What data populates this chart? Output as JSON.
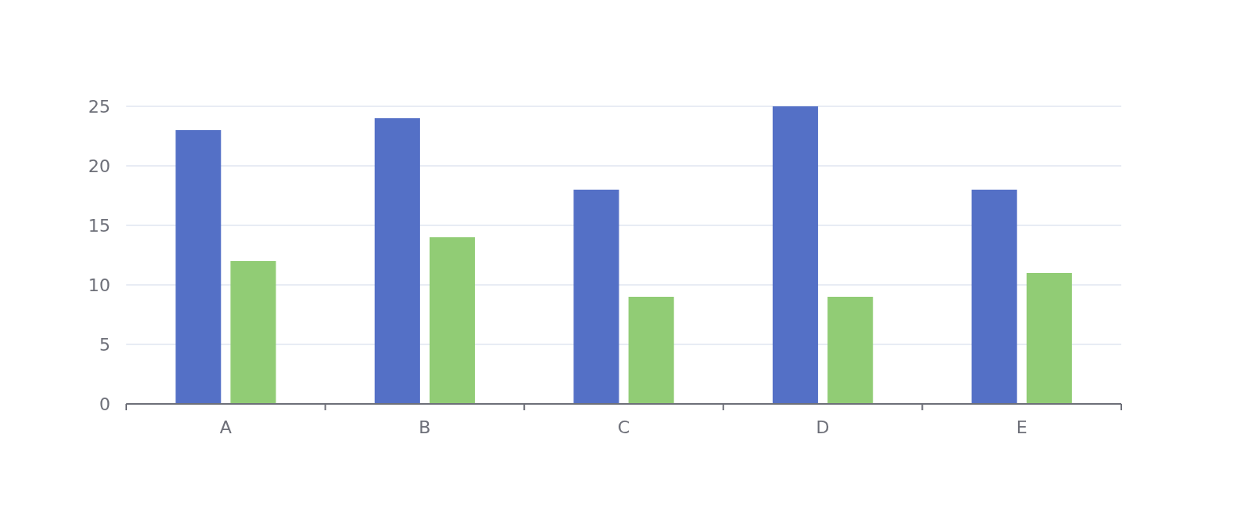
{
  "chart_data": {
    "type": "bar",
    "categories": [
      "A",
      "B",
      "C",
      "D",
      "E"
    ],
    "series": [
      {
        "color": "#5470c6",
        "values": [
          23,
          24,
          18,
          25,
          18
        ]
      },
      {
        "color": "#91cc75",
        "values": [
          12,
          14,
          9,
          9,
          11
        ]
      }
    ],
    "ylim": [
      0,
      25
    ],
    "yticks": [
      0,
      5,
      10,
      15,
      20,
      25
    ],
    "grid": "y"
  }
}
